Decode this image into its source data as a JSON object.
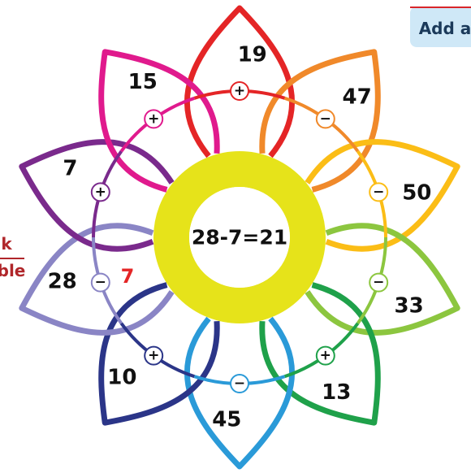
{
  "header_button": "Add a",
  "side_text": [
    "k",
    "ble"
  ],
  "center_equation": "28-7=21",
  "answer_hint": "7",
  "petals": [
    {
      "number": "19",
      "operator": "+",
      "color": "#e42526"
    },
    {
      "number": "47",
      "operator": "−",
      "color": "#f0892a"
    },
    {
      "number": "50",
      "operator": "−",
      "color": "#fbbd16"
    },
    {
      "number": "33",
      "operator": "−",
      "color": "#8cc63f"
    },
    {
      "number": "13",
      "operator": "+",
      "color": "#1fa14a"
    },
    {
      "number": "45",
      "operator": "−",
      "color": "#2a9ad8"
    },
    {
      "number": "10",
      "operator": "+",
      "color": "#2b3588"
    },
    {
      "number": "28",
      "operator": "−",
      "color": "#8a85c5"
    },
    {
      "number": "7",
      "operator": "+",
      "color": "#7a2a8c"
    },
    {
      "number": "15",
      "operator": "+",
      "color": "#e01a8d"
    }
  ]
}
